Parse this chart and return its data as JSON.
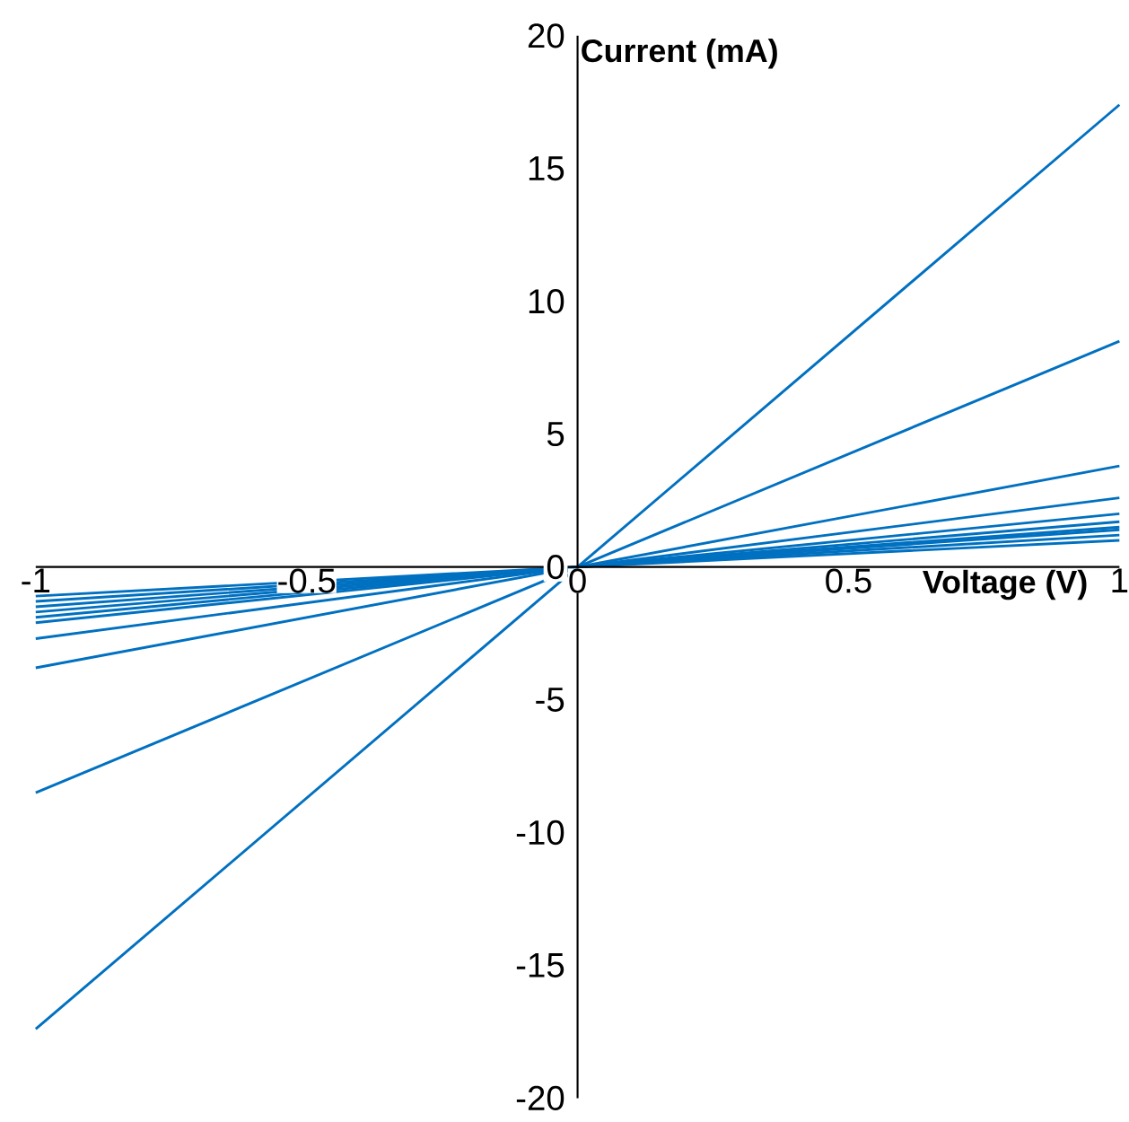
{
  "chart_data": {
    "type": "line",
    "xlabel": "Voltage (V)",
    "ylabel": "Current (mA)",
    "x": [
      -1,
      0,
      1
    ],
    "xlim": [
      -1,
      1
    ],
    "xticks": [
      -1,
      -0.5,
      0,
      0.5,
      1
    ],
    "ylim": [
      -20,
      20
    ],
    "yticks": [
      -20,
      -15,
      -10,
      -5,
      0,
      5,
      10,
      15,
      20
    ],
    "grid": false,
    "marker": "none",
    "line_style": "solid",
    "series": [
      {
        "color": "#0070c0",
        "values": [
          -17.4,
          0,
          17.4
        ]
      },
      {
        "color": "#0070c0",
        "values": [
          -8.5,
          0,
          8.5
        ]
      },
      {
        "color": "#0070c0",
        "values": [
          -3.8,
          0,
          3.8
        ]
      },
      {
        "color": "#0070c0",
        "values": [
          -2.7,
          0,
          2.6
        ]
      },
      {
        "color": "#0070c0",
        "values": [
          -2.1,
          0,
          2.0
        ]
      },
      {
        "color": "#0070c0",
        "values": [
          -1.9,
          0,
          1.7
        ]
      },
      {
        "color": "#0070c0",
        "values": [
          -1.7,
          0,
          1.5
        ]
      },
      {
        "color": "#0070c0",
        "values": [
          -1.5,
          0,
          1.4
        ]
      },
      {
        "color": "#0070c0",
        "values": [
          -1.3,
          0,
          1.2
        ]
      },
      {
        "color": "#0070c0",
        "values": [
          -1.1,
          0,
          1.0
        ]
      }
    ]
  }
}
